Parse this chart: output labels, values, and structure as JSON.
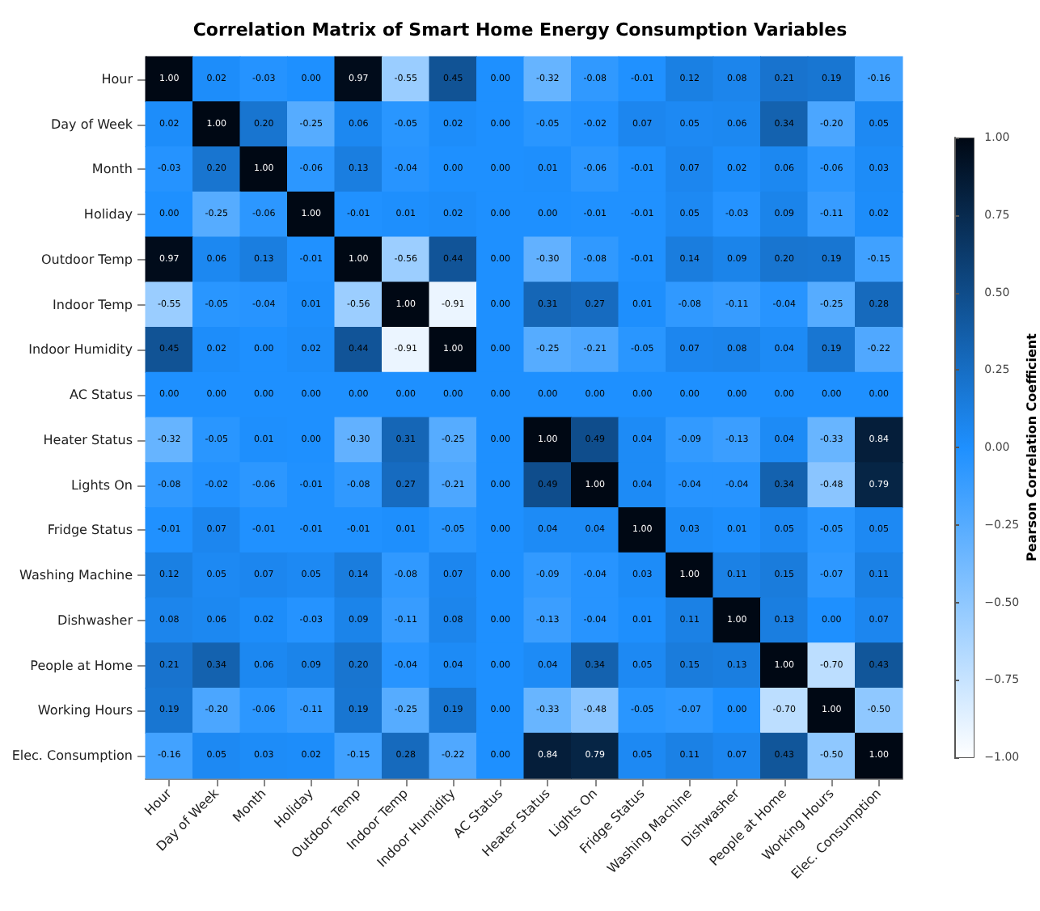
{
  "chart_data": {
    "type": "heatmap",
    "title": "Correlation Matrix of Smart Home Energy Consumption Variables",
    "clabel": "Pearson Correlation Coefficient",
    "categories": [
      "Hour",
      "Day of Week",
      "Month",
      "Holiday",
      "Outdoor Temp",
      "Indoor Temp",
      "Indoor Humidity",
      "AC Status",
      "Heater Status",
      "Lights On",
      "Fridge Status",
      "Washing Machine",
      "Dishwasher",
      "People at Home",
      "Working Hours",
      "Elec. Consumption"
    ],
    "y_categories": [
      "Hour",
      "Day of Week",
      "Month",
      "Holiday",
      "Outdoor Temp",
      "Indoor Temp",
      "Indoor Humidity",
      "AC Status",
      "Heater Status",
      "Lights On",
      "Fridge Status",
      "Washing Machine",
      "Dishwasher",
      "People at Home",
      "Working Hours",
      "Elec. Consumption"
    ],
    "cells": [
      [
        1.0,
        0.02,
        -0.03,
        0.0,
        0.97,
        -0.55,
        0.45,
        0.0,
        -0.32,
        -0.08,
        -0.01,
        0.12,
        0.08,
        0.21,
        0.19,
        -0.16
      ],
      [
        0.02,
        1.0,
        0.2,
        -0.25,
        0.06,
        -0.05,
        0.02,
        0.0,
        -0.05,
        -0.02,
        0.07,
        0.05,
        0.06,
        0.34,
        -0.2,
        0.05
      ],
      [
        -0.03,
        0.2,
        1.0,
        -0.06,
        0.13,
        -0.04,
        0.0,
        0.0,
        0.01,
        -0.06,
        -0.01,
        0.07,
        0.02,
        0.06,
        -0.06,
        0.03
      ],
      [
        0.0,
        -0.25,
        -0.06,
        1.0,
        -0.01,
        0.01,
        0.02,
        0.0,
        0.0,
        -0.01,
        -0.01,
        0.05,
        -0.03,
        0.09,
        -0.11,
        0.02
      ],
      [
        0.97,
        0.06,
        0.13,
        -0.01,
        1.0,
        -0.56,
        0.44,
        0.0,
        -0.3,
        -0.08,
        -0.01,
        0.14,
        0.09,
        0.2,
        0.19,
        -0.15
      ],
      [
        -0.55,
        -0.05,
        -0.04,
        0.01,
        -0.56,
        1.0,
        -0.91,
        0.0,
        0.31,
        0.27,
        0.01,
        -0.08,
        -0.11,
        -0.04,
        -0.25,
        0.28
      ],
      [
        0.45,
        0.02,
        0.0,
        0.02,
        0.44,
        -0.91,
        1.0,
        0.0,
        -0.25,
        -0.21,
        -0.05,
        0.07,
        0.08,
        0.04,
        0.19,
        -0.22
      ],
      [
        0.0,
        0.0,
        0.0,
        0.0,
        0.0,
        0.0,
        0.0,
        0.0,
        0.0,
        0.0,
        0.0,
        0.0,
        0.0,
        0.0,
        0.0,
        0.0
      ],
      [
        -0.32,
        -0.05,
        0.01,
        0.0,
        -0.3,
        0.31,
        -0.25,
        0.0,
        1.0,
        0.49,
        0.04,
        -0.09,
        -0.13,
        0.04,
        -0.33,
        0.84
      ],
      [
        -0.08,
        -0.02,
        -0.06,
        -0.01,
        -0.08,
        0.27,
        -0.21,
        0.0,
        0.49,
        1.0,
        0.04,
        -0.04,
        -0.04,
        0.34,
        -0.48,
        0.79
      ],
      [
        -0.01,
        0.07,
        -0.01,
        -0.01,
        -0.01,
        0.01,
        -0.05,
        0.0,
        0.04,
        0.04,
        1.0,
        0.03,
        0.01,
        0.05,
        -0.05,
        0.05
      ],
      [
        0.12,
        0.05,
        0.07,
        0.05,
        0.14,
        -0.08,
        0.07,
        0.0,
        -0.09,
        -0.04,
        0.03,
        1.0,
        0.11,
        0.15,
        -0.07,
        0.11
      ],
      [
        0.08,
        0.06,
        0.02,
        -0.03,
        0.09,
        -0.11,
        0.08,
        0.0,
        -0.13,
        -0.04,
        0.01,
        0.11,
        1.0,
        0.13,
        0.0,
        0.07
      ],
      [
        0.21,
        0.34,
        0.06,
        0.09,
        0.2,
        -0.04,
        0.04,
        0.0,
        0.04,
        0.34,
        0.05,
        0.15,
        0.13,
        1.0,
        -0.7,
        0.43
      ],
      [
        0.19,
        -0.2,
        -0.06,
        -0.11,
        0.19,
        -0.25,
        0.19,
        0.0,
        -0.33,
        -0.48,
        -0.05,
        -0.07,
        0.0,
        -0.7,
        1.0,
        -0.5
      ],
      [
        -0.16,
        0.05,
        0.03,
        0.02,
        -0.15,
        0.28,
        -0.22,
        0.0,
        0.84,
        0.79,
        0.05,
        0.11,
        0.07,
        0.43,
        -0.5,
        1.0
      ]
    ],
    "cell_labels": [
      [
        "1.00",
        "0.02",
        "-0.03",
        "0.00",
        "0.97",
        "-0.55",
        "0.45",
        "0.00",
        "-0.32",
        "-0.08",
        "-0.01",
        "0.12",
        "0.08",
        "0.21",
        "0.19",
        "-0.16"
      ],
      [
        "0.02",
        "1.00",
        "0.20",
        "-0.25",
        "0.06",
        "-0.05",
        "0.02",
        "0.00",
        "-0.05",
        "-0.02",
        "0.07",
        "0.05",
        "0.06",
        "0.34",
        "-0.20",
        "0.05"
      ],
      [
        "-0.03",
        "0.20",
        "1.00",
        "-0.06",
        "0.13",
        "-0.04",
        "0.00",
        "0.00",
        "0.01",
        "-0.06",
        "-0.01",
        "0.07",
        "0.02",
        "0.06",
        "-0.06",
        "0.03"
      ],
      [
        "0.00",
        "-0.25",
        "-0.06",
        "1.00",
        "-0.01",
        "0.01",
        "0.02",
        "0.00",
        "0.00",
        "-0.01",
        "-0.01",
        "0.05",
        "-0.03",
        "0.09",
        "-0.11",
        "0.02"
      ],
      [
        "0.97",
        "0.06",
        "0.13",
        "-0.01",
        "1.00",
        "-0.56",
        "0.44",
        "0.00",
        "-0.30",
        "-0.08",
        "-0.01",
        "0.14",
        "0.09",
        "0.20",
        "0.19",
        "-0.15"
      ],
      [
        "-0.55",
        "-0.05",
        "-0.04",
        "0.01",
        "-0.56",
        "1.00",
        "-0.91",
        "0.00",
        "0.31",
        "0.27",
        "0.01",
        "-0.08",
        "-0.11",
        "-0.04",
        "-0.25",
        "0.28"
      ],
      [
        "0.45",
        "0.02",
        "0.00",
        "0.02",
        "0.44",
        "-0.91",
        "1.00",
        "0.00",
        "-0.25",
        "-0.21",
        "-0.05",
        "0.07",
        "0.08",
        "0.04",
        "0.19",
        "-0.22"
      ],
      [
        "0.00",
        "0.00",
        "0.00",
        "0.00",
        "0.00",
        "0.00",
        "0.00",
        "0.00",
        "0.00",
        "0.00",
        "0.00",
        "0.00",
        "0.00",
        "0.00",
        "0.00",
        "0.00"
      ],
      [
        "-0.32",
        "-0.05",
        "0.01",
        "0.00",
        "-0.30",
        "0.31",
        "-0.25",
        "0.00",
        "1.00",
        "0.49",
        "0.04",
        "-0.09",
        "-0.13",
        "0.04",
        "-0.33",
        "0.84"
      ],
      [
        "-0.08",
        "-0.02",
        "-0.06",
        "-0.01",
        "-0.08",
        "0.27",
        "-0.21",
        "0.00",
        "0.49",
        "1.00",
        "0.04",
        "-0.04",
        "-0.04",
        "0.34",
        "-0.48",
        "0.79"
      ],
      [
        "-0.01",
        "0.07",
        "-0.01",
        "-0.01",
        "-0.01",
        "0.01",
        "-0.05",
        "0.00",
        "0.04",
        "0.04",
        "1.00",
        "0.03",
        "0.01",
        "0.05",
        "-0.05",
        "0.05"
      ],
      [
        "0.12",
        "0.05",
        "0.07",
        "0.05",
        "0.14",
        "-0.08",
        "0.07",
        "0.00",
        "-0.09",
        "-0.04",
        "0.03",
        "1.00",
        "0.11",
        "0.15",
        "-0.07",
        "0.11"
      ],
      [
        "0.08",
        "0.06",
        "0.02",
        "-0.03",
        "0.09",
        "-0.11",
        "0.08",
        "0.00",
        "-0.13",
        "-0.04",
        "0.01",
        "0.11",
        "1.00",
        "0.13",
        "0.00",
        "0.07"
      ],
      [
        "0.21",
        "0.34",
        "0.06",
        "0.09",
        "0.20",
        "-0.04",
        "0.04",
        "0.00",
        "0.04",
        "0.34",
        "0.05",
        "0.15",
        "0.13",
        "1.00",
        "-0.70",
        "0.43"
      ],
      [
        "0.19",
        "-0.20",
        "-0.06",
        "-0.11",
        "0.19",
        "-0.25",
        "0.19",
        "0.00",
        "-0.33",
        "-0.48",
        "-0.05",
        "-0.07",
        "0.00",
        "-0.70",
        "1.00",
        "-0.50"
      ],
      [
        "-0.16",
        "0.05",
        "0.03",
        "0.02",
        "-0.15",
        "0.28",
        "-0.22",
        "0.00",
        "0.84",
        "0.79",
        "0.05",
        "0.11",
        "0.07",
        "0.43",
        "-0.50",
        "1.00"
      ]
    ],
    "clim": [
      -1,
      1
    ],
    "cticks": [
      {
        "value": -1,
        "label": "−1.00"
      },
      {
        "value": -0.75,
        "label": "−0.75"
      },
      {
        "value": -0.5,
        "label": "−0.50"
      },
      {
        "value": -0.25,
        "label": "−0.25"
      },
      {
        "value": 0,
        "label": "0.00"
      },
      {
        "value": 0.25,
        "label": "0.25"
      },
      {
        "value": 0.5,
        "label": "0.50"
      },
      {
        "value": 0.75,
        "label": "0.75"
      },
      {
        "value": 1,
        "label": "1.00"
      }
    ]
  }
}
